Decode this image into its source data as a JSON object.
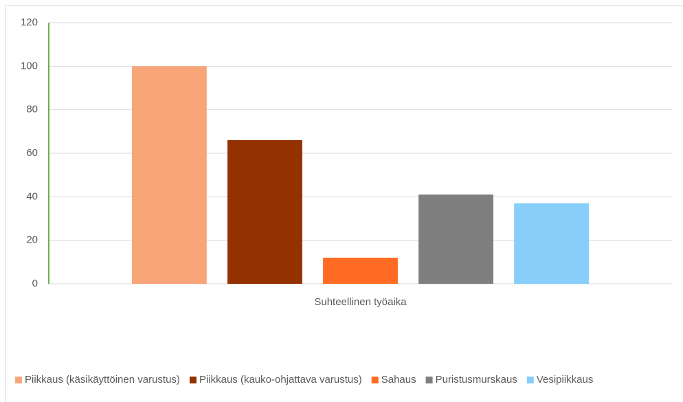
{
  "chart_data": {
    "type": "bar",
    "categories": [
      "Suhteellinen työaika"
    ],
    "series": [
      {
        "name": "Piikkaus (käsikäyttöinen varustus)",
        "color": "#f9a57a",
        "values": [
          100
        ]
      },
      {
        "name": "Piikkaus (kauko-ohjattava varustus)",
        "color": "#933100",
        "values": [
          66
        ]
      },
      {
        "name": "Sahaus",
        "color": "#ff6b22",
        "values": [
          12
        ]
      },
      {
        "name": "Puristusmurskaus",
        "color": "#7f7f7f",
        "values": [
          41
        ]
      },
      {
        "name": "Vesipiikkaus",
        "color": "#87cefa",
        "values": [
          37
        ]
      }
    ],
    "ylim": [
      0,
      120
    ],
    "yticks": [
      0,
      20,
      40,
      60,
      80,
      100,
      120
    ],
    "grid": true,
    "legend": "bottom"
  }
}
